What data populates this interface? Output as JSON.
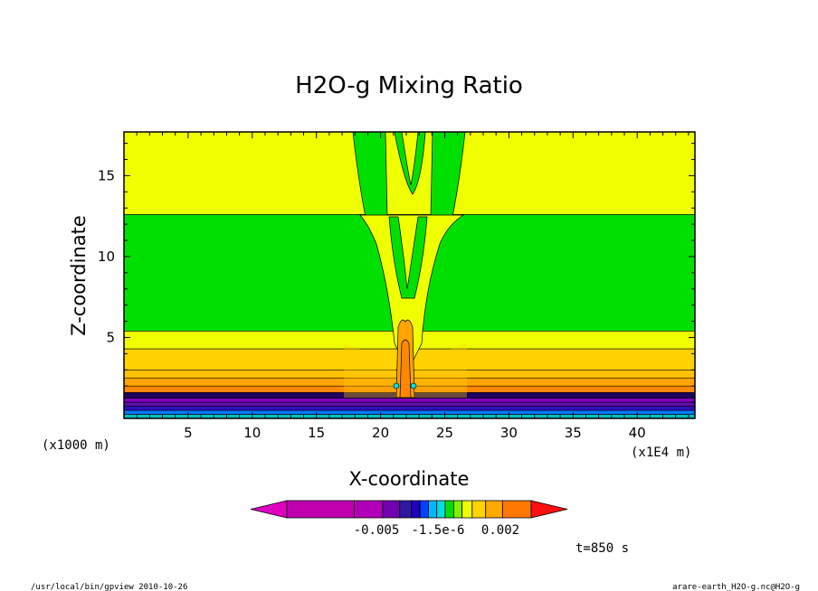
{
  "chart_data": {
    "type": "heatmap",
    "title": "H2O-g Mixing Ratio",
    "xlabel": "X-coordinate",
    "ylabel": "Z-coordinate",
    "x_unit": "(x1E4 m)",
    "y_unit": "(x1000 m)",
    "xlim": [
      0,
      44.5
    ],
    "ylim": [
      0,
      17.7
    ],
    "x_ticks": [
      5,
      10,
      15,
      20,
      25,
      30,
      35,
      40
    ],
    "y_ticks": [
      5,
      10,
      15
    ],
    "horizontal_bands": [
      {
        "z0": 0.0,
        "z1": 0.25,
        "color": "#00c0c0"
      },
      {
        "z0": 0.25,
        "z1": 0.5,
        "color": "#0078ff"
      },
      {
        "z0": 0.5,
        "z1": 0.75,
        "color": "#3010c0"
      },
      {
        "z0": 0.75,
        "z1": 1.0,
        "color": "#6010a8"
      },
      {
        "z0": 1.0,
        "z1": 1.25,
        "color": "#8000c0"
      },
      {
        "z0": 1.25,
        "z1": 1.6,
        "color": "#200060"
      },
      {
        "z0": 1.6,
        "z1": 2.0,
        "color": "#ff8800"
      },
      {
        "z0": 2.0,
        "z1": 2.5,
        "color": "#ffa400"
      },
      {
        "z0": 2.5,
        "z1": 3.0,
        "color": "#ffc000"
      },
      {
        "z0": 3.0,
        "z1": 4.3,
        "color": "#ffd200"
      },
      {
        "z0": 4.3,
        "z1": 5.4,
        "color": "#f0ff00"
      },
      {
        "z0": 5.4,
        "z1": 12.6,
        "color": "#00e000"
      },
      {
        "z0": 12.6,
        "z1": 17.7,
        "color": "#f0ff00"
      }
    ],
    "colorbar": {
      "colors": [
        "#e000c0",
        "#c000b0",
        "#b000b8",
        "#7000b0",
        "#3018a0",
        "#2000c0",
        "#0040ff",
        "#00b8ff",
        "#00e0e0",
        "#00e000",
        "#80f000",
        "#f0ff00",
        "#ffd400",
        "#ffaa00",
        "#ff7800",
        "#ff1010"
      ],
      "labels": [
        "-0.005",
        "-1.5e-6",
        "0.002"
      ]
    },
    "annotation": "t=850 s",
    "footer_left": "/usr/local/bin/gpview  2010-10-26",
    "footer_right": "arare-earth_H2O-g.nc@H2O-g"
  }
}
